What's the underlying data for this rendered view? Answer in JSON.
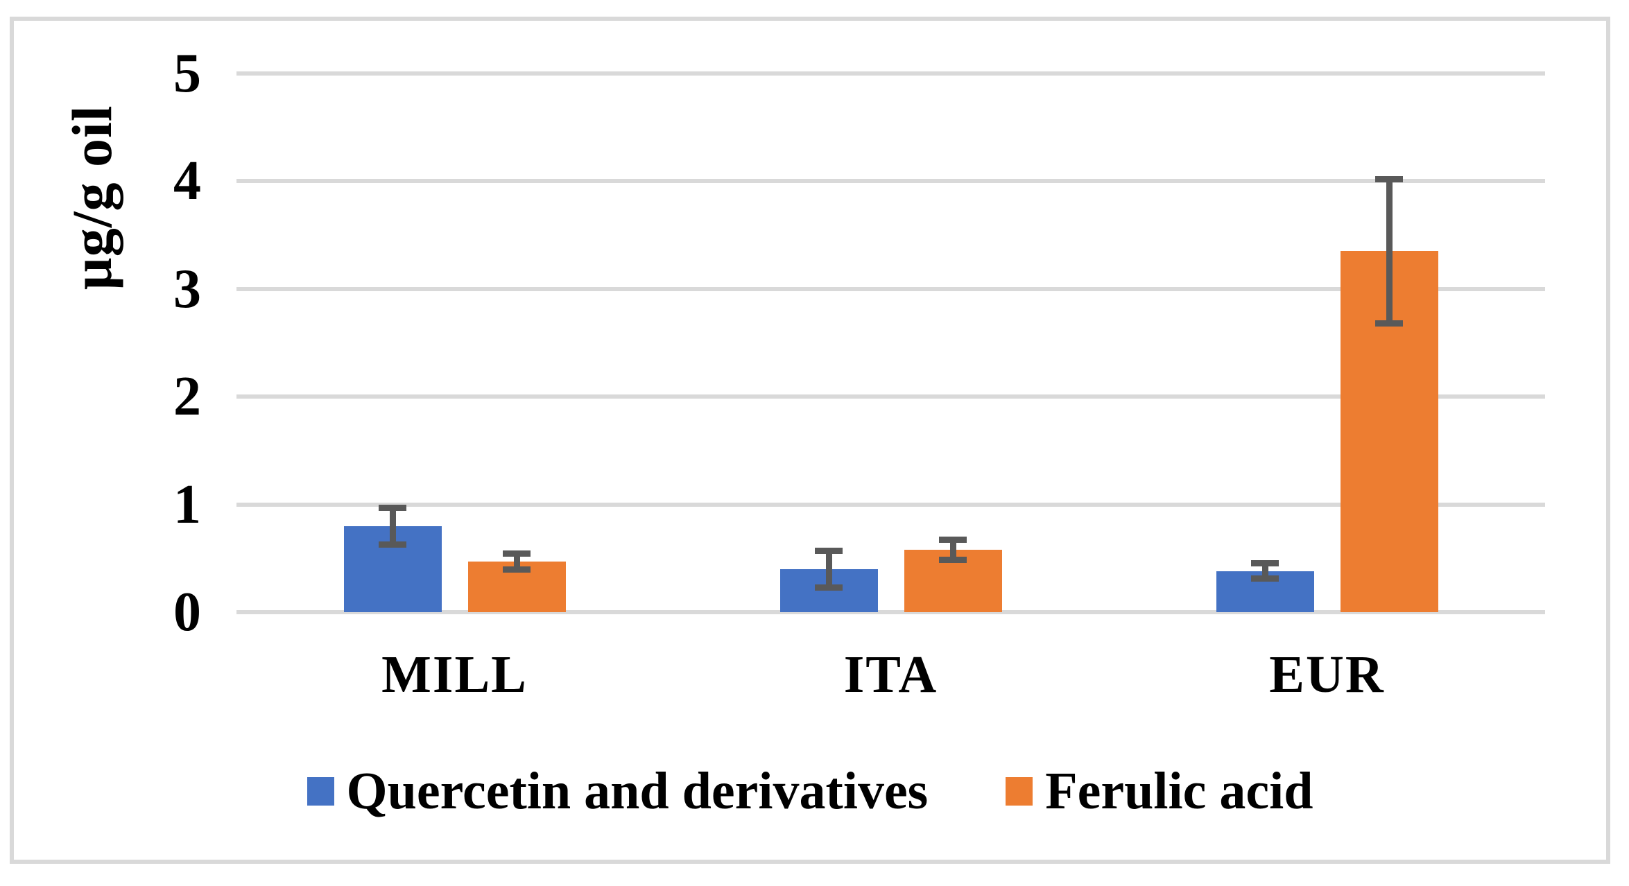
{
  "chart_data": {
    "type": "bar",
    "title": "",
    "xlabel": "",
    "ylabel": "µg/g oil",
    "categories": [
      "MILL",
      "ITA",
      "EUR"
    ],
    "series": [
      {
        "name": "Quercetin and derivatives",
        "color": "#4472C4",
        "values": [
          0.8,
          0.4,
          0.38
        ],
        "errors": [
          0.2,
          0.2,
          0.1
        ]
      },
      {
        "name": "Ferulic acid",
        "color": "#ED7D31",
        "values": [
          0.47,
          0.58,
          3.35
        ],
        "errors": [
          0.1,
          0.12,
          0.7
        ]
      }
    ],
    "ylim": [
      0,
      5
    ],
    "yticks": [
      "0",
      "1",
      "2",
      "3",
      "4",
      "5"
    ],
    "grid": true,
    "legend_position": "bottom",
    "gridline_color": "#D9D9D9",
    "error_bar_color": "#595959",
    "frame_color": "#D9D9D9"
  }
}
